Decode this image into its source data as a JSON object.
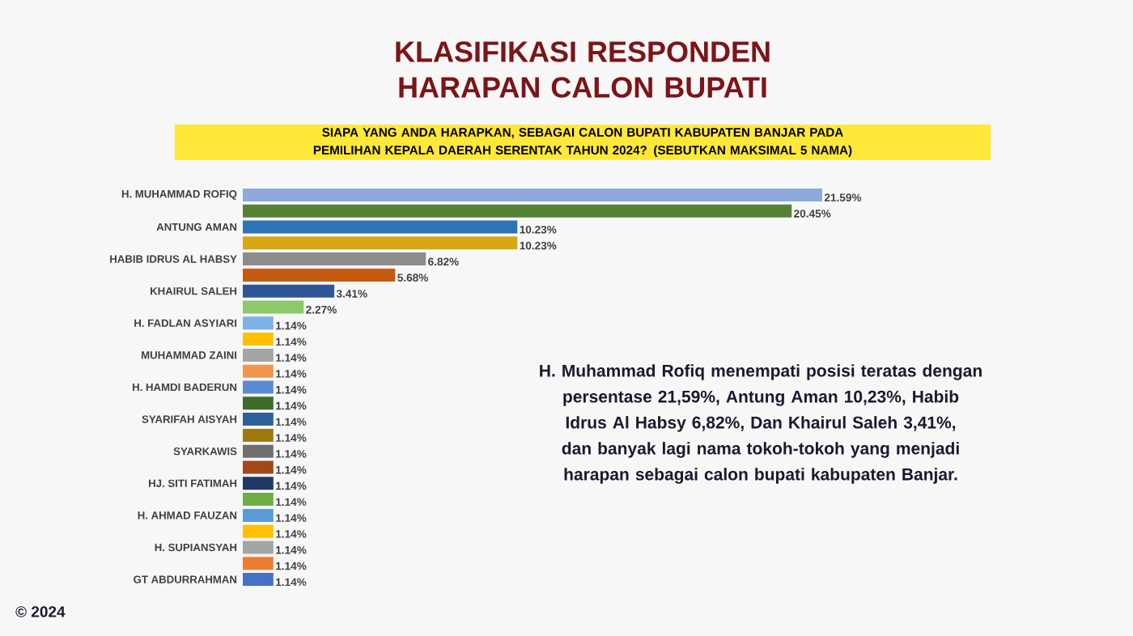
{
  "chart_data": {
    "type": "bar",
    "orientation": "horizontal",
    "title": "KLASIFIKASI RESPONDEN HARAPAN CALON BUPATI",
    "subtitle": "SIAPA YANG ANDA HARAPKAN, SEBAGAI CALON BUPATI KABUPATEN BANJAR PADA PEMILIHAN KEPALA DAERAH SERENTAK TAHUN 2024? (SEBUTKAN MAKSIMAL 5 NAMA)",
    "categories": [
      "H. MUHAMMAD ROFIQ",
      null,
      "ANTUNG AMAN",
      null,
      "HABIB IDRUS AL HABSY",
      null,
      "KHAIRUL SALEH",
      null,
      "H. FADLAN ASYIARI",
      null,
      "MUHAMMAD ZAINI",
      null,
      "H. HAMDI BADERUN",
      null,
      "SYARIFAH AISYAH",
      null,
      "SYARKAWIS",
      null,
      "HJ. SITI FATIMAH",
      null,
      "H. AHMAD FAUZAN",
      null,
      "H. SUPIANSYAH",
      null,
      "GT ABDURRAHMAN"
    ],
    "values": [
      21.59,
      20.45,
      10.23,
      10.23,
      6.82,
      5.68,
      3.41,
      2.27,
      1.14,
      1.14,
      1.14,
      1.14,
      1.14,
      1.14,
      1.14,
      1.14,
      1.14,
      1.14,
      1.14,
      1.14,
      1.14,
      1.14,
      1.14,
      1.14,
      1.14
    ],
    "value_labels": [
      "21.59%",
      "20.45%",
      "10.23%",
      "10.23%",
      "6.82%",
      "5.68%",
      "3.41%",
      "2.27%",
      "1.14%",
      "1.14%",
      "1.14%",
      "1.14%",
      "1.14%",
      "1.14%",
      "1.14%",
      "1.14%",
      "1.14%",
      "1.14%",
      "1.14%",
      "1.14%",
      "1.14%",
      "1.14%",
      "1.14%",
      "1.14%",
      "1.14%"
    ],
    "colors": [
      "#8eaadb",
      "#548235",
      "#2e75b6",
      "#d6a615",
      "#8c8c8c",
      "#c55a11",
      "#2f5597",
      "#8dc96b",
      "#7fb2e5",
      "#ffc000",
      "#a5a5a5",
      "#f0964f",
      "#5b8bd6",
      "#3e6b2a",
      "#2e5f9a",
      "#9c7a10",
      "#6f6f6f",
      "#a0481a",
      "#1f3864",
      "#70ad47",
      "#5b9bd5",
      "#ffc000",
      "#a5a5a5",
      "#ed7d31",
      "#4472c4"
    ],
    "annotations": [
      "H. Muhammad Rofiq  menempati posisi teratas dengan persentase 21,59%, Antung Aman 10,23%, Habib Idrus Al Habsy 6,82%, Dan Khairul Saleh 3,41%, dan banyak lagi nama tokoh-tokoh yang menjadi harapan sebagai calon bupati kabupaten Banjar.",
      "© 2024"
    ]
  }
}
